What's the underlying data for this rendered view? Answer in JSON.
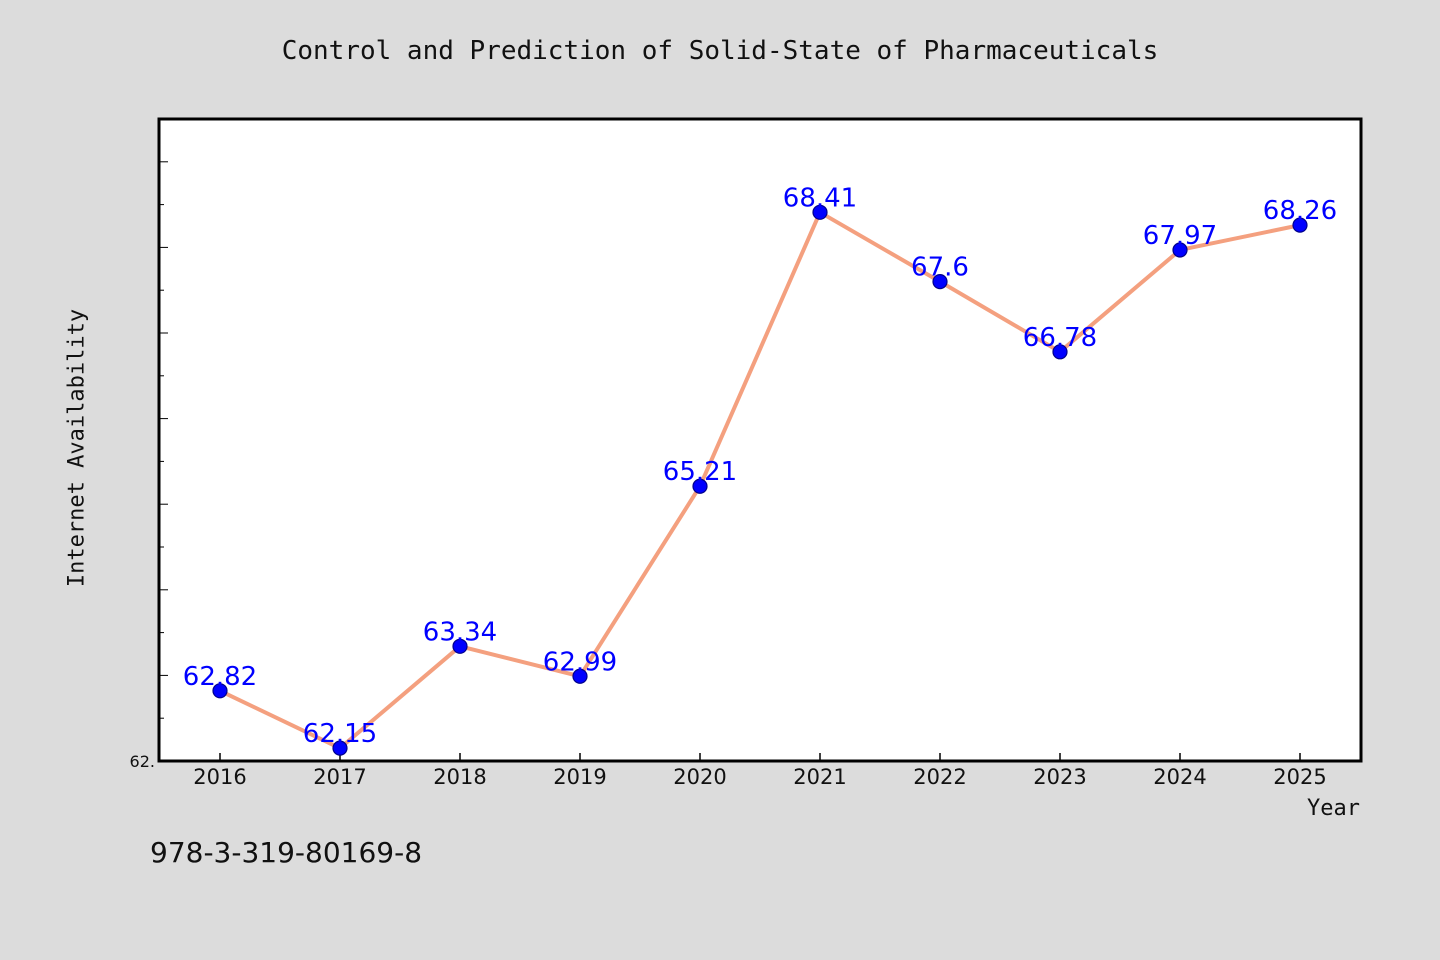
{
  "chart_data": {
    "type": "line",
    "title": "Control and Prediction of Solid-State of Pharmaceuticals",
    "xlabel": "Year",
    "ylabel": "Internet Availability",
    "categories": [
      "2016",
      "2017",
      "2018",
      "2019",
      "2020",
      "2021",
      "2022",
      "2023",
      "2024",
      "2025"
    ],
    "series": [
      {
        "values": [
          62.82,
          62.15,
          63.34,
          62.99,
          65.21,
          68.41,
          67.6,
          66.78,
          67.97,
          68.26
        ],
        "data_labels": [
          "62.82",
          "62.15",
          "63.34",
          "62.99",
          "65.21",
          "68.41",
          "67.6",
          "66.78",
          "67.97",
          "68.26"
        ]
      }
    ],
    "ylim": [
      62.0,
      69.5
    ],
    "y_tick_label": "62.",
    "grid": false,
    "legend": "none",
    "colors": {
      "line": "#f4a07f",
      "marker": "#0000ff",
      "marker_edge": "#00008b",
      "label": "#0000ff",
      "background": "#dcdcdc",
      "plot_area": "#ffffff"
    }
  },
  "footer": {
    "text": "978-3-319-80169-8"
  }
}
